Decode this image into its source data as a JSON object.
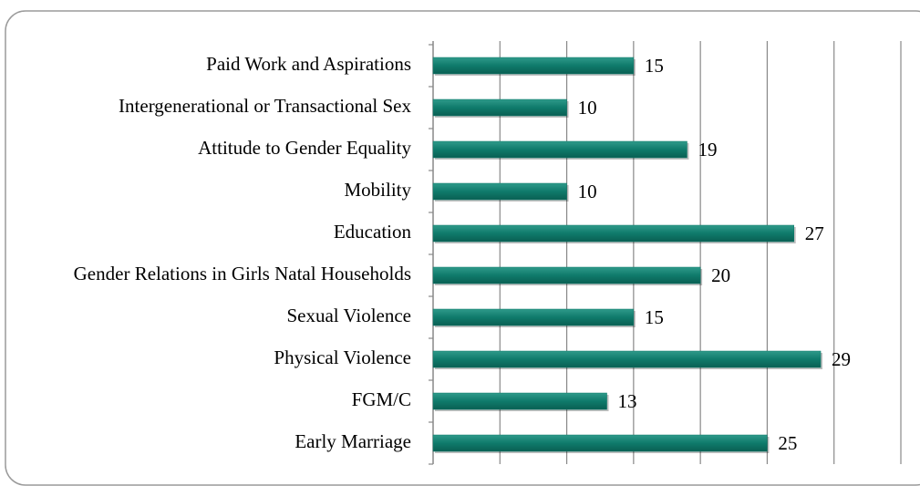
{
  "chart_data": {
    "type": "bar",
    "orientation": "horizontal",
    "categories": [
      "Paid Work and Aspirations",
      "Intergenerational or Transactional Sex",
      "Attitude to Gender Equality",
      "Mobility",
      "Education",
      "Gender Relations in Girls Natal Households",
      "Sexual Violence",
      "Physical Violence",
      "FGM/C",
      "Early Marriage"
    ],
    "values": [
      15,
      10,
      19,
      10,
      27,
      20,
      15,
      29,
      13,
      25
    ],
    "color": "#0f7a6b",
    "xlim": [
      0,
      35
    ],
    "xticks": [
      0,
      5,
      10,
      15,
      20,
      25,
      30,
      35
    ],
    "grid": true
  }
}
